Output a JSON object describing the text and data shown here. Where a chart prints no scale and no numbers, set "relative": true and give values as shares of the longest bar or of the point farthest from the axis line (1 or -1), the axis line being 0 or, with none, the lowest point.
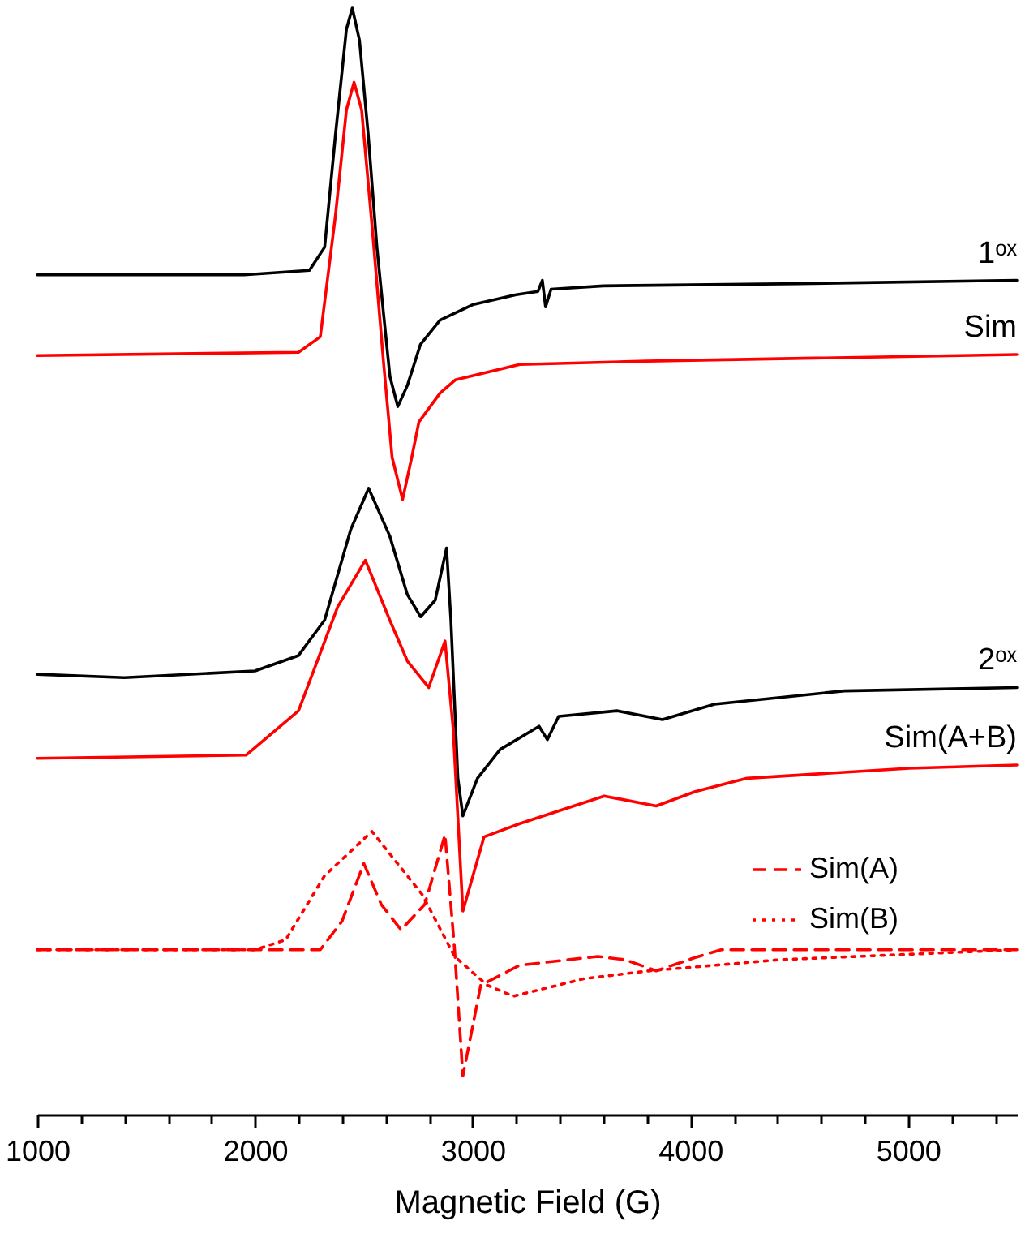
{
  "chart_data": {
    "type": "line",
    "relative": true,
    "xlabel": "Magnetic Field (G)",
    "xlim": [
      1000,
      5500
    ],
    "xticks": [
      1000,
      {
        "value": 1200,
        "label": null
      },
      {
        "value": 1400,
        "label": null
      },
      {
        "value": 1600,
        "label": null
      },
      {
        "value": 1800,
        "label": null
      },
      2000,
      {
        "value": 2200,
        "label": null
      },
      {
        "value": 2400,
        "label": null
      },
      {
        "value": 2600,
        "label": null
      },
      {
        "value": 2800,
        "label": null
      },
      3000,
      {
        "value": 3200,
        "label": null
      },
      {
        "value": 3400,
        "label": null
      },
      {
        "value": 3600,
        "label": null
      },
      {
        "value": 3800,
        "label": null
      },
      4000,
      {
        "value": 4200,
        "label": null
      },
      {
        "value": 4400,
        "label": null
      },
      {
        "value": 4600,
        "label": null
      },
      {
        "value": 4800,
        "label": null
      },
      5000,
      {
        "value": 5200,
        "label": null
      },
      {
        "value": 5400,
        "label": null
      }
    ],
    "grid": false,
    "legend": "right",
    "tick_labels": "x",
    "series": [
      {
        "name": "1ᵒˣ",
        "color": "#000000",
        "line_style": "solid",
        "x": [
          1000,
          1950,
          2250,
          2320,
          2370,
          2420,
          2447,
          2480,
          2520,
          2560,
          2590,
          2620,
          2656,
          2700,
          2760,
          2850,
          3000,
          3200,
          3300,
          3320,
          3335,
          3360,
          3600,
          4500,
          5500
        ],
        "values": [
          0.759,
          0.759,
          0.763,
          0.784,
          0.886,
          0.981,
          1.0,
          0.971,
          0.886,
          0.784,
          0.725,
          0.667,
          0.64,
          0.659,
          0.696,
          0.718,
          0.732,
          0.741,
          0.744,
          0.754,
          0.73,
          0.746,
          0.749,
          0.751,
          0.754
        ]
      },
      {
        "name": "Sim",
        "color": "#ff0000",
        "line_style": "solid",
        "x": [
          1000,
          2200,
          2300,
          2370,
          2420,
          2455,
          2490,
          2540,
          2590,
          2630,
          2678,
          2720,
          2753,
          2850,
          2920,
          3216,
          3800,
          5500
        ],
        "values": [
          0.686,
          0.689,
          0.703,
          0.813,
          0.908,
          0.933,
          0.908,
          0.798,
          0.681,
          0.594,
          0.556,
          0.594,
          0.626,
          0.652,
          0.664,
          0.678,
          0.681,
          0.687
        ]
      },
      {
        "name": "2ᵒˣ",
        "color": "#000000",
        "line_style": "solid",
        "x": [
          1000,
          1400,
          2000,
          2200,
          2320,
          2440,
          2522,
          2619,
          2700,
          2761,
          2828,
          2880,
          2900,
          2932,
          2955,
          3022,
          3126,
          3305,
          3343,
          3395,
          3663,
          3872,
          4111,
          4708,
          5500
        ],
        "values": [
          0.398,
          0.395,
          0.401,
          0.415,
          0.447,
          0.529,
          0.566,
          0.523,
          0.47,
          0.45,
          0.465,
          0.512,
          0.447,
          0.304,
          0.27,
          0.304,
          0.33,
          0.351,
          0.339,
          0.36,
          0.365,
          0.357,
          0.371,
          0.383,
          0.386
        ]
      },
      {
        "name": "Sim(A+B)",
        "color": "#ff0000",
        "line_style": "solid",
        "x": [
          1000,
          1960,
          2200,
          2380,
          2507,
          2619,
          2700,
          2798,
          2873,
          2910,
          2955,
          3052,
          3216,
          3604,
          3843,
          4022,
          4260,
          5006,
          5500
        ],
        "values": [
          0.322,
          0.325,
          0.365,
          0.459,
          0.501,
          0.447,
          0.41,
          0.386,
          0.428,
          0.35,
          0.184,
          0.251,
          0.263,
          0.288,
          0.279,
          0.292,
          0.304,
          0.313,
          0.316
        ]
      },
      {
        "name": "Sim(A)",
        "color": "#ff0000",
        "line_style": "dashed",
        "x": [
          1000,
          2300,
          2400,
          2500,
          2580,
          2671,
          2780,
          2873,
          2917,
          2955,
          3037,
          3216,
          3574,
          3700,
          3843,
          4022,
          4141,
          5500
        ],
        "values": [
          0.149,
          0.149,
          0.175,
          0.227,
          0.19,
          0.167,
          0.19,
          0.253,
          0.149,
          0.035,
          0.117,
          0.135,
          0.143,
          0.14,
          0.13,
          0.142,
          0.149,
          0.149
        ]
      },
      {
        "name": "Sim(B)",
        "color": "#ff0000",
        "line_style": "dotted",
        "x": [
          1000,
          2000,
          2141,
          2320,
          2537,
          2768,
          2917,
          3067,
          3186,
          3514,
          3812,
          4409,
          5500
        ],
        "values": [
          0.149,
          0.149,
          0.158,
          0.216,
          0.256,
          0.199,
          0.143,
          0.117,
          0.107,
          0.123,
          0.13,
          0.14,
          0.149
        ]
      }
    ]
  }
}
